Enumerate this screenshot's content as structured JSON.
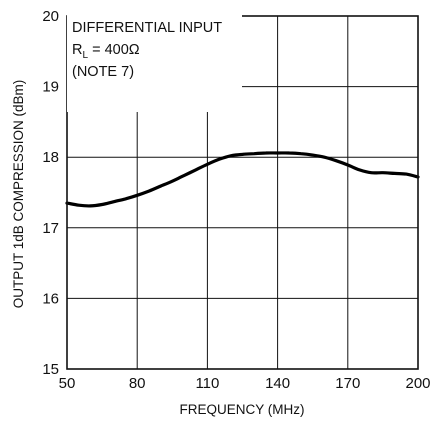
{
  "chart_data": {
    "type": "line",
    "title": "",
    "xlabel": "FREQUENCY (MHz)",
    "ylabel": "OUTPUT 1dB COMPRESSION (dBm)",
    "xlim": [
      50,
      200
    ],
    "ylim": [
      15,
      20
    ],
    "x_ticks": [
      50,
      80,
      110,
      140,
      170,
      200
    ],
    "y_ticks": [
      15,
      16,
      17,
      18,
      19,
      20
    ],
    "grid": true,
    "annotation": {
      "line1": "DIFFERENTIAL INPUT",
      "line2_main": "R",
      "line2_sub": "L",
      "line2_rest": " = 400Ω",
      "line3": "(NOTE 7)"
    },
    "series": [
      {
        "x": [
          50,
          55,
          60,
          65,
          70,
          75,
          80,
          85,
          90,
          95,
          100,
          105,
          110,
          115,
          120,
          125,
          130,
          135,
          140,
          145,
          150,
          155,
          160,
          165,
          170,
          175,
          180,
          185,
          190,
          195,
          200
        ],
        "y": [
          17.35,
          17.32,
          17.31,
          17.33,
          17.37,
          17.41,
          17.46,
          17.52,
          17.59,
          17.66,
          17.74,
          17.82,
          17.9,
          17.97,
          18.02,
          18.04,
          18.05,
          18.06,
          18.06,
          18.06,
          18.05,
          18.03,
          18.0,
          17.95,
          17.89,
          17.82,
          17.78,
          17.78,
          17.77,
          17.76,
          17.72
        ]
      }
    ]
  }
}
